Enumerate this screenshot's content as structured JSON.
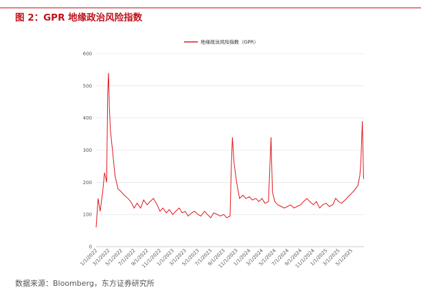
{
  "header": {
    "title": "图 2：GPR 地缘政治风险指数"
  },
  "footer": {
    "source": "数据来源：Bloomberg，东方证券研究所"
  },
  "colors": {
    "accent": "#c0121b",
    "series": "#e0151b",
    "grid": "#dddddd",
    "axis": "#bbbbbb"
  },
  "chart_data": {
    "type": "line",
    "title": "",
    "xlabel": "",
    "ylabel": "",
    "legend": {
      "position": "top-center",
      "entries": [
        "地缘政治风险指数（GPR）"
      ]
    },
    "grid": {
      "horizontal": true,
      "vertical": false
    },
    "ylim": [
      0,
      600
    ],
    "y_ticks": [
      0,
      100,
      200,
      300,
      400,
      500,
      600
    ],
    "x_range": [
      "2022-01-01",
      "2025-06-30"
    ],
    "x_ticks": [
      "1/1/2022",
      "3/1/2022",
      "5/1/2022",
      "7/1/2022",
      "9/1/2022",
      "11/1/2022",
      "1/1/2023",
      "3/1/2023",
      "5/1/2023",
      "7/1/2023",
      "9/1/2023",
      "11/1/2023",
      "1/1/2024",
      "3/1/2024",
      "5/1/2024",
      "7/1/2024",
      "9/1/2024",
      "11/1/2024",
      "1/1/2025",
      "3/1/2025",
      "5/1/2025"
    ],
    "series": [
      {
        "name": "地缘政治风险指数（GPR）",
        "points": [
          [
            "2022-01-01",
            60
          ],
          [
            "2022-01-10",
            150
          ],
          [
            "2022-01-20",
            110
          ],
          [
            "2022-02-01",
            170
          ],
          [
            "2022-02-10",
            230
          ],
          [
            "2022-02-20",
            200
          ],
          [
            "2022-02-25",
            480
          ],
          [
            "2022-03-01",
            540
          ],
          [
            "2022-03-05",
            430
          ],
          [
            "2022-03-10",
            360
          ],
          [
            "2022-03-20",
            300
          ],
          [
            "2022-04-01",
            220
          ],
          [
            "2022-04-15",
            180
          ],
          [
            "2022-05-01",
            170
          ],
          [
            "2022-05-15",
            160
          ],
          [
            "2022-06-01",
            150
          ],
          [
            "2022-06-15",
            140
          ],
          [
            "2022-07-01",
            120
          ],
          [
            "2022-07-15",
            135
          ],
          [
            "2022-08-01",
            120
          ],
          [
            "2022-08-15",
            145
          ],
          [
            "2022-09-01",
            130
          ],
          [
            "2022-09-15",
            140
          ],
          [
            "2022-10-01",
            150
          ],
          [
            "2022-10-15",
            135
          ],
          [
            "2022-11-01",
            110
          ],
          [
            "2022-11-15",
            120
          ],
          [
            "2022-12-01",
            105
          ],
          [
            "2022-12-15",
            115
          ],
          [
            "2023-01-01",
            100
          ],
          [
            "2023-01-15",
            110
          ],
          [
            "2023-02-01",
            120
          ],
          [
            "2023-02-15",
            105
          ],
          [
            "2023-03-01",
            110
          ],
          [
            "2023-03-15",
            95
          ],
          [
            "2023-04-01",
            105
          ],
          [
            "2023-04-15",
            110
          ],
          [
            "2023-05-01",
            100
          ],
          [
            "2023-05-15",
            95
          ],
          [
            "2023-06-01",
            110
          ],
          [
            "2023-06-15",
            100
          ],
          [
            "2023-07-01",
            90
          ],
          [
            "2023-07-15",
            105
          ],
          [
            "2023-08-01",
            100
          ],
          [
            "2023-08-15",
            95
          ],
          [
            "2023-09-01",
            100
          ],
          [
            "2023-09-15",
            90
          ],
          [
            "2023-10-01",
            95
          ],
          [
            "2023-10-07",
            250
          ],
          [
            "2023-10-12",
            340
          ],
          [
            "2023-10-20",
            260
          ],
          [
            "2023-11-01",
            200
          ],
          [
            "2023-11-15",
            150
          ],
          [
            "2023-12-01",
            160
          ],
          [
            "2023-12-15",
            150
          ],
          [
            "2024-01-01",
            155
          ],
          [
            "2024-01-15",
            145
          ],
          [
            "2024-02-01",
            150
          ],
          [
            "2024-02-15",
            140
          ],
          [
            "2024-03-01",
            150
          ],
          [
            "2024-03-15",
            135
          ],
          [
            "2024-04-01",
            140
          ],
          [
            "2024-04-13",
            340
          ],
          [
            "2024-04-20",
            170
          ],
          [
            "2024-05-01",
            140
          ],
          [
            "2024-05-15",
            130
          ],
          [
            "2024-06-01",
            125
          ],
          [
            "2024-06-15",
            120
          ],
          [
            "2024-07-01",
            125
          ],
          [
            "2024-07-15",
            130
          ],
          [
            "2024-08-01",
            120
          ],
          [
            "2024-08-15",
            125
          ],
          [
            "2024-09-01",
            130
          ],
          [
            "2024-09-15",
            140
          ],
          [
            "2024-10-01",
            150
          ],
          [
            "2024-10-15",
            140
          ],
          [
            "2024-11-01",
            130
          ],
          [
            "2024-11-15",
            140
          ],
          [
            "2024-12-01",
            120
          ],
          [
            "2024-12-15",
            130
          ],
          [
            "2025-01-01",
            135
          ],
          [
            "2025-01-15",
            125
          ],
          [
            "2025-02-01",
            130
          ],
          [
            "2025-02-15",
            150
          ],
          [
            "2025-03-01",
            140
          ],
          [
            "2025-03-15",
            135
          ],
          [
            "2025-04-01",
            145
          ],
          [
            "2025-04-15",
            155
          ],
          [
            "2025-05-01",
            165
          ],
          [
            "2025-05-15",
            175
          ],
          [
            "2025-06-01",
            190
          ],
          [
            "2025-06-10",
            220
          ],
          [
            "2025-06-15",
            260
          ],
          [
            "2025-06-22",
            390
          ],
          [
            "2025-06-28",
            210
          ]
        ]
      }
    ]
  }
}
